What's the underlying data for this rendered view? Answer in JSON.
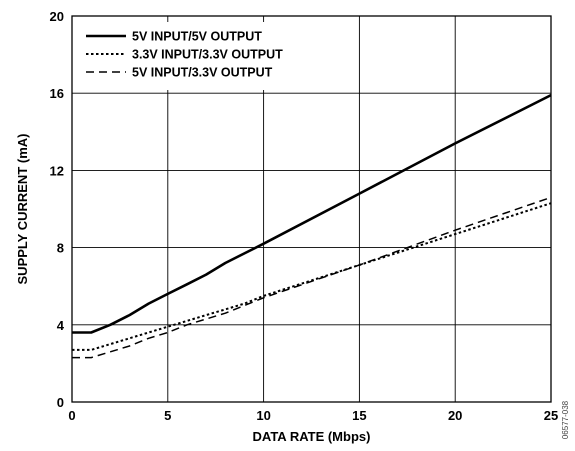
{
  "chart_data": {
    "type": "line",
    "title": "",
    "xlabel": "DATA RATE (Mbps)",
    "ylabel": "SUPPLY CURRENT (mA)",
    "xlim": [
      0,
      25
    ],
    "ylim": [
      0,
      20
    ],
    "xticks": [
      0,
      5,
      10,
      15,
      20,
      25
    ],
    "yticks": [
      0,
      4,
      8,
      12,
      16,
      20
    ],
    "grid": true,
    "legend_position": "top-left",
    "figure_code": "06577-038",
    "series": [
      {
        "name": "5V INPUT/5V OUTPUT",
        "style": "solid",
        "x": [
          0,
          1,
          2,
          3,
          4,
          5,
          6,
          7,
          8,
          9,
          10,
          15,
          20,
          25
        ],
        "y": [
          3.6,
          3.6,
          4.0,
          4.5,
          5.1,
          5.6,
          6.1,
          6.6,
          7.2,
          7.7,
          8.2,
          10.8,
          13.4,
          15.9
        ]
      },
      {
        "name": "3.3V INPUT/3.3V OUTPUT",
        "style": "dotted",
        "x": [
          0,
          1,
          2,
          3,
          4,
          5,
          6,
          7,
          8,
          9,
          10,
          15,
          20,
          25
        ],
        "y": [
          2.7,
          2.7,
          3.0,
          3.3,
          3.6,
          3.9,
          4.2,
          4.5,
          4.8,
          5.1,
          5.5,
          7.1,
          8.7,
          10.3
        ]
      },
      {
        "name": "5V INPUT/3.3V OUTPUT",
        "style": "dashed",
        "x": [
          0,
          1,
          2,
          3,
          4,
          5,
          6,
          7,
          8,
          9,
          10,
          15,
          20,
          25
        ],
        "y": [
          2.3,
          2.3,
          2.6,
          2.9,
          3.3,
          3.6,
          4.0,
          4.3,
          4.6,
          5.0,
          5.4,
          7.1,
          8.9,
          10.6
        ]
      }
    ]
  }
}
